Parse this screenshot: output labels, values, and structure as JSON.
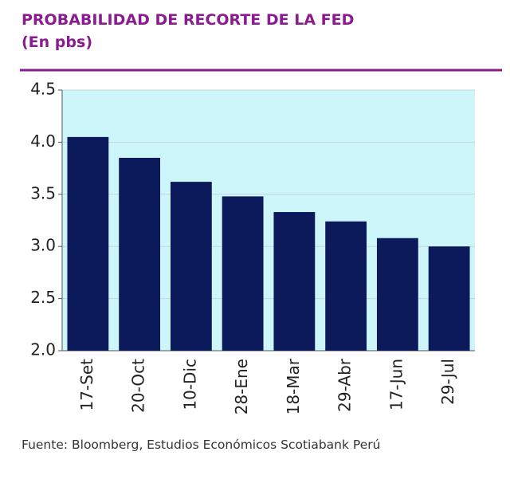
{
  "chart_data": {
    "type": "bar",
    "title": "PROBABILIDAD DE RECORTE DE LA FED",
    "subtitle": "(En pbs)",
    "source": "Fuente: Bloomberg, Estudios Económicos Scotiabank Perú",
    "categories": [
      "17-Set",
      "20-Oct",
      "10-Dic",
      "28-Ene",
      "18-Mar",
      "29-Abr",
      "17-Jun",
      "29-Jul"
    ],
    "values": [
      4.05,
      3.85,
      3.62,
      3.48,
      3.33,
      3.24,
      3.08,
      3.0
    ],
    "color": "#0c1a5b",
    "background": "#cdf6fa",
    "ylim": [
      2.0,
      4.5
    ],
    "yticks": [
      {
        "value": 2.0,
        "label": "2.0"
      },
      2.5,
      {
        "value": 3.0,
        "label": "3.0"
      },
      3.5,
      {
        "value": 4.0,
        "label": "4.0"
      },
      4.5
    ],
    "grid": true
  }
}
